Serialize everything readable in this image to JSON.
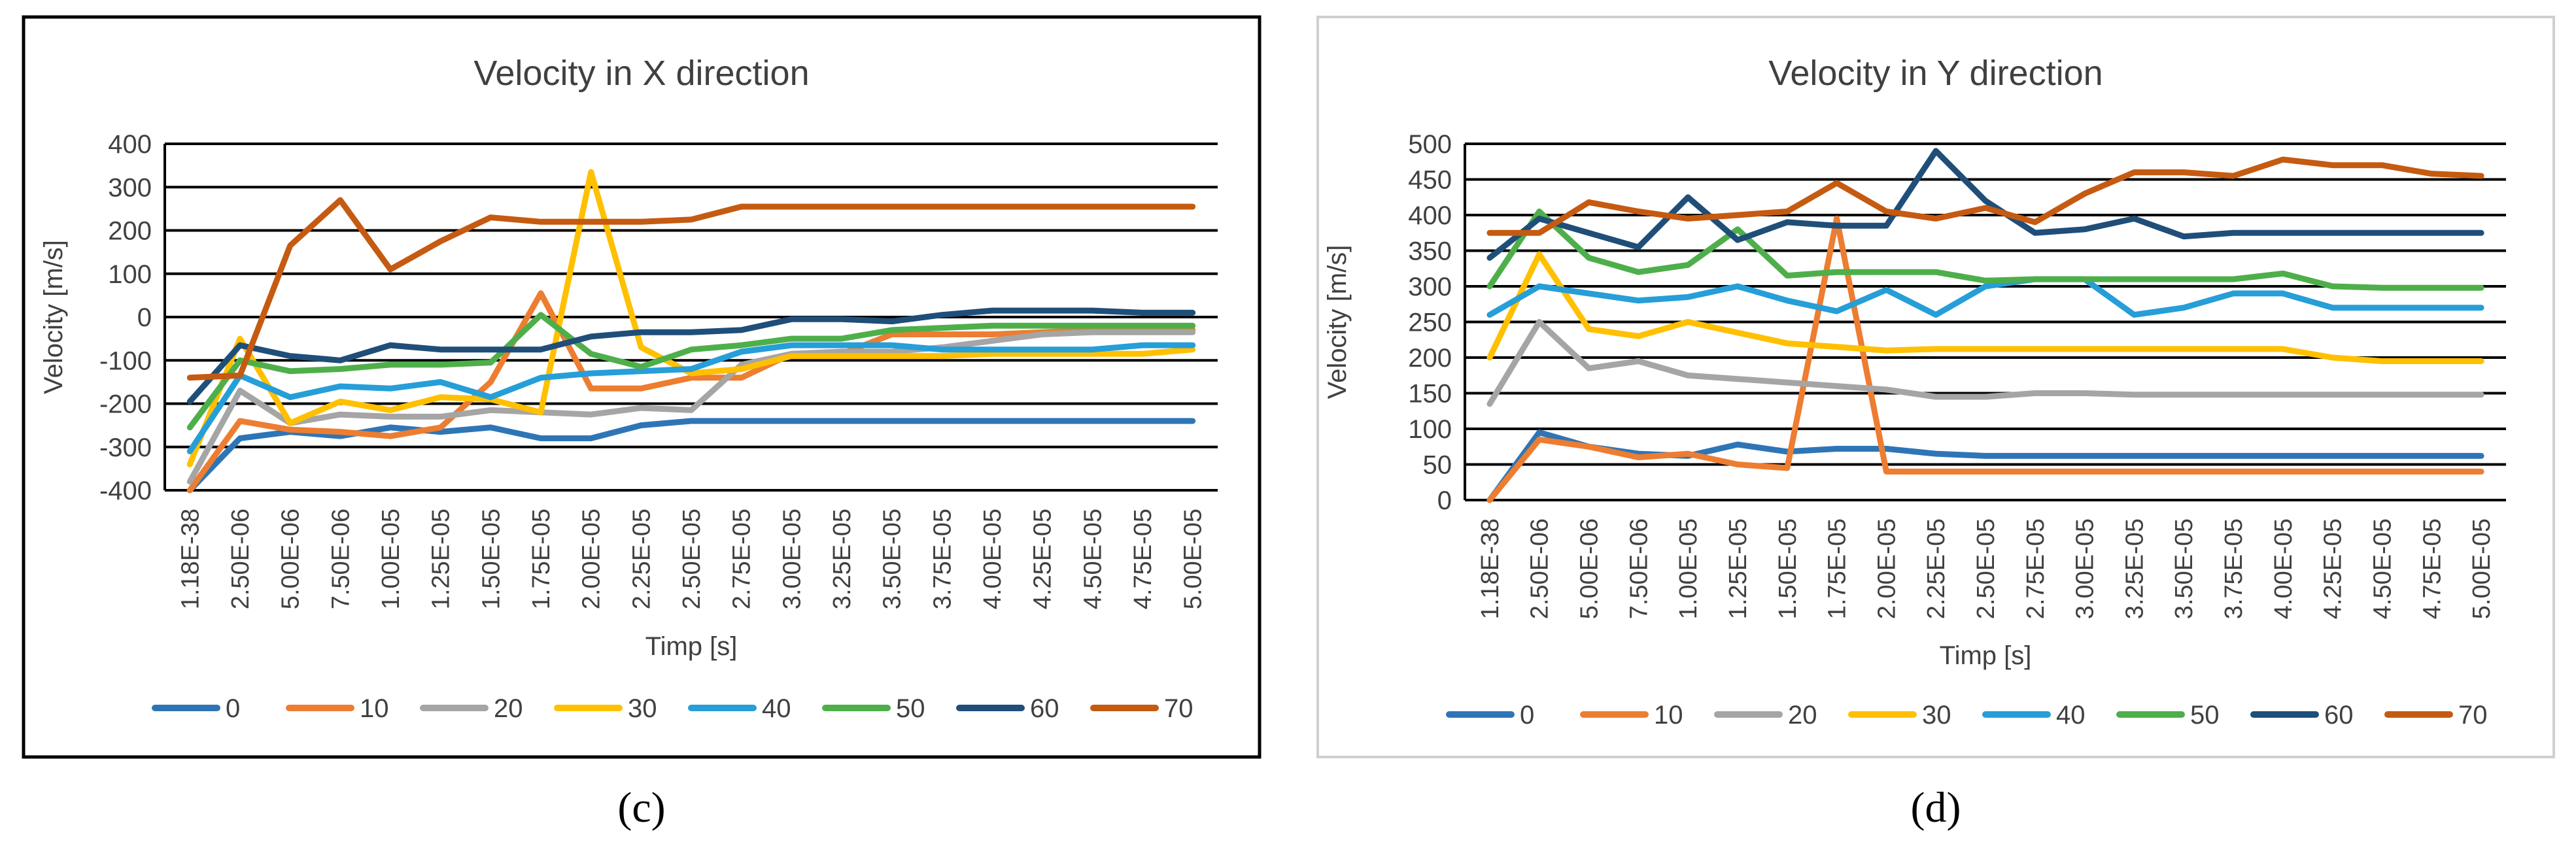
{
  "colors": {
    "s0": "#2E75B6",
    "s10": "#ED7D31",
    "s20": "#A5A5A5",
    "s30": "#FFC000",
    "s40": "#269ED8",
    "s50": "#4EAF4A",
    "s60": "#1F4E79",
    "s70": "#C55A11"
  },
  "panel_labels": {
    "c": "(c)",
    "d": "(d)"
  },
  "chart_data": [
    {
      "type": "line",
      "title": "Velocity in X direction",
      "xlabel": "Timp [s]",
      "ylabel": "Velocity [m/s]",
      "ylim": [
        -400,
        400
      ],
      "yticks": [
        "400",
        "300",
        "200",
        "100",
        "0",
        "-100",
        "-200",
        "-300",
        "-400"
      ],
      "ytick_values": [
        400,
        300,
        200,
        100,
        0,
        -100,
        -200,
        -300,
        -400
      ],
      "grid": true,
      "legend_position": "bottom",
      "categories": [
        "1.18E-38",
        "2.50E-06",
        "5.00E-06",
        "7.50E-06",
        "1.00E-05",
        "1.25E-05",
        "1.50E-05",
        "1.75E-05",
        "2.00E-05",
        "2.25E-05",
        "2.50E-05",
        "2.75E-05",
        "3.00E-05",
        "3.25E-05",
        "3.50E-05",
        "3.75E-05",
        "4.00E-05",
        "4.25E-05",
        "4.50E-05",
        "4.75E-05",
        "5.00E-05"
      ],
      "series": [
        {
          "name": "0",
          "color_key": "s0",
          "values": [
            -400,
            -280,
            -265,
            -275,
            -255,
            -265,
            -255,
            -280,
            -280,
            -250,
            -240,
            -240,
            -240,
            -240,
            -240,
            -240,
            -240,
            -240,
            -240,
            -240,
            -240
          ]
        },
        {
          "name": "10",
          "color_key": "s10",
          "values": [
            -400,
            -240,
            -260,
            -265,
            -275,
            -255,
            -150,
            55,
            -165,
            -165,
            -140,
            -140,
            -85,
            -85,
            -40,
            -40,
            -40,
            -35,
            -30,
            -30,
            -30
          ]
        },
        {
          "name": "20",
          "color_key": "s20",
          "values": [
            -380,
            -170,
            -245,
            -225,
            -230,
            -230,
            -215,
            -220,
            -225,
            -210,
            -215,
            -110,
            -85,
            -80,
            -80,
            -70,
            -55,
            -40,
            -35,
            -35,
            -35
          ]
        },
        {
          "name": "30",
          "color_key": "s30",
          "values": [
            -340,
            -50,
            -245,
            -195,
            -215,
            -185,
            -190,
            -220,
            335,
            -70,
            -130,
            -120,
            -90,
            -90,
            -90,
            -90,
            -85,
            -85,
            -85,
            -85,
            -75
          ]
        },
        {
          "name": "40",
          "color_key": "s40",
          "values": [
            -310,
            -135,
            -185,
            -160,
            -165,
            -150,
            -185,
            -140,
            -130,
            -125,
            -120,
            -80,
            -65,
            -65,
            -65,
            -75,
            -75,
            -75,
            -75,
            -65,
            -65
          ]
        },
        {
          "name": "50",
          "color_key": "s50",
          "values": [
            -255,
            -100,
            -125,
            -120,
            -110,
            -110,
            -105,
            5,
            -85,
            -115,
            -75,
            -65,
            -50,
            -50,
            -30,
            -25,
            -20,
            -20,
            -20,
            -20,
            -20
          ]
        },
        {
          "name": "60",
          "color_key": "s60",
          "values": [
            -195,
            -65,
            -90,
            -100,
            -65,
            -75,
            -75,
            -75,
            -45,
            -35,
            -35,
            -30,
            -5,
            -5,
            -10,
            5,
            15,
            15,
            15,
            10,
            10
          ]
        },
        {
          "name": "70",
          "color_key": "s70",
          "values": [
            -140,
            -135,
            165,
            270,
            110,
            175,
            230,
            220,
            220,
            220,
            225,
            255,
            255,
            255,
            255,
            255,
            255,
            255,
            255,
            255,
            255
          ]
        }
      ]
    },
    {
      "type": "line",
      "title": "Velocity in Y direction",
      "xlabel": "Timp [s]",
      "ylabel": "Velocity [m/s]",
      "ylim": [
        0,
        500
      ],
      "yticks": [
        "500",
        "450",
        "400",
        "350",
        "300",
        "250",
        "200",
        "150",
        "100",
        "50",
        "0"
      ],
      "ytick_values": [
        500,
        450,
        400,
        350,
        300,
        250,
        200,
        150,
        100,
        50,
        0
      ],
      "grid": true,
      "legend_position": "bottom",
      "categories": [
        "1.18E-38",
        "2.50E-06",
        "5.00E-06",
        "7.50E-06",
        "1.00E-05",
        "1.25E-05",
        "1.50E-05",
        "1.75E-05",
        "2.00E-05",
        "2.25E-05",
        "2.50E-05",
        "2.75E-05",
        "3.00E-05",
        "3.25E-05",
        "3.50E-05",
        "3.75E-05",
        "4.00E-05",
        "4.25E-05",
        "4.50E-05",
        "4.75E-05",
        "5.00E-05"
      ],
      "series": [
        {
          "name": "0",
          "color_key": "s0",
          "values": [
            0,
            95,
            75,
            65,
            62,
            78,
            68,
            72,
            72,
            65,
            62,
            62,
            62,
            62,
            62,
            62,
            62,
            62,
            62,
            62,
            62
          ]
        },
        {
          "name": "10",
          "color_key": "s10",
          "values": [
            0,
            85,
            75,
            60,
            65,
            50,
            45,
            395,
            40,
            40,
            40,
            40,
            40,
            40,
            40,
            40,
            40,
            40,
            40,
            40,
            40
          ]
        },
        {
          "name": "20",
          "color_key": "s20",
          "values": [
            135,
            250,
            185,
            195,
            175,
            170,
            165,
            160,
            155,
            145,
            145,
            150,
            150,
            148,
            148,
            148,
            148,
            148,
            148,
            148,
            148
          ]
        },
        {
          "name": "30",
          "color_key": "s30",
          "values": [
            200,
            345,
            240,
            230,
            250,
            235,
            220,
            215,
            210,
            212,
            212,
            212,
            212,
            212,
            212,
            212,
            212,
            200,
            195,
            195,
            195
          ]
        },
        {
          "name": "40",
          "color_key": "s40",
          "values": [
            260,
            300,
            290,
            280,
            285,
            300,
            280,
            265,
            295,
            260,
            300,
            310,
            310,
            260,
            270,
            290,
            290,
            270,
            270,
            270,
            270
          ]
        },
        {
          "name": "50",
          "color_key": "s50",
          "values": [
            300,
            405,
            340,
            320,
            330,
            380,
            315,
            320,
            320,
            320,
            308,
            310,
            310,
            310,
            310,
            310,
            318,
            300,
            298,
            298,
            298
          ]
        },
        {
          "name": "60",
          "color_key": "s60",
          "values": [
            340,
            395,
            375,
            355,
            425,
            365,
            390,
            385,
            385,
            490,
            420,
            375,
            380,
            395,
            370,
            375,
            375,
            375,
            375,
            375,
            375
          ]
        },
        {
          "name": "70",
          "color_key": "s70",
          "values": [
            375,
            375,
            418,
            405,
            395,
            400,
            405,
            445,
            405,
            395,
            410,
            390,
            430,
            460,
            460,
            455,
            478,
            470,
            470,
            458,
            455
          ]
        }
      ]
    }
  ]
}
